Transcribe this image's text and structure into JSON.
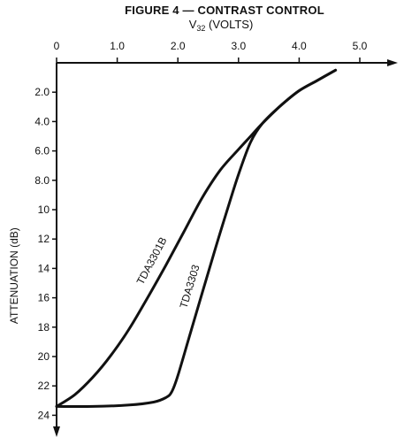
{
  "chart_data": {
    "type": "line",
    "title": "FIGURE 4 — CONTRAST CONTROL",
    "xlabel_main": "V",
    "xlabel_sub": "32",
    "xlabel_unit": " (VOLTS)",
    "ylabel": "ATTENUATION (dB)",
    "xlim": [
      0,
      5.6
    ],
    "ylim": [
      0,
      25
    ],
    "x_ticks": [
      "0",
      "1.0",
      "2.0",
      "3.0",
      "4.0",
      "5.0"
    ],
    "x_tick_values": [
      0,
      1,
      2,
      3,
      4,
      5
    ],
    "y_ticks": [
      "2.0",
      "4.0",
      "6.0",
      "8.0",
      "10",
      "12",
      "14",
      "16",
      "18",
      "20",
      "22",
      "24"
    ],
    "y_tick_values": [
      2,
      4,
      6,
      8,
      10,
      12,
      14,
      16,
      18,
      20,
      22,
      24
    ],
    "grid": false,
    "series": [
      {
        "name": "TDA3301B",
        "x": [
          0.0,
          0.3,
          0.6,
          0.9,
          1.2,
          1.5,
          1.8,
          2.1,
          2.4,
          2.7,
          3.0,
          3.2,
          3.4,
          3.7,
          4.0,
          4.3,
          4.6
        ],
        "y": [
          23.4,
          22.6,
          21.4,
          19.9,
          18.1,
          16.0,
          13.8,
          11.5,
          9.2,
          7.3,
          5.9,
          5.0,
          4.1,
          2.9,
          1.9,
          1.2,
          0.5
        ]
      },
      {
        "name": "TDA3303",
        "x": [
          0.0,
          0.6,
          1.2,
          1.6,
          1.8,
          1.9,
          2.0,
          2.2,
          2.4,
          2.6,
          2.8,
          3.0,
          3.2,
          3.4,
          3.7,
          4.0,
          4.3,
          4.6
        ],
        "y": [
          23.4,
          23.4,
          23.3,
          23.1,
          22.8,
          22.4,
          21.3,
          18.5,
          15.7,
          12.9,
          10.2,
          7.6,
          5.4,
          4.1,
          2.9,
          1.9,
          1.2,
          0.5
        ]
      }
    ]
  }
}
